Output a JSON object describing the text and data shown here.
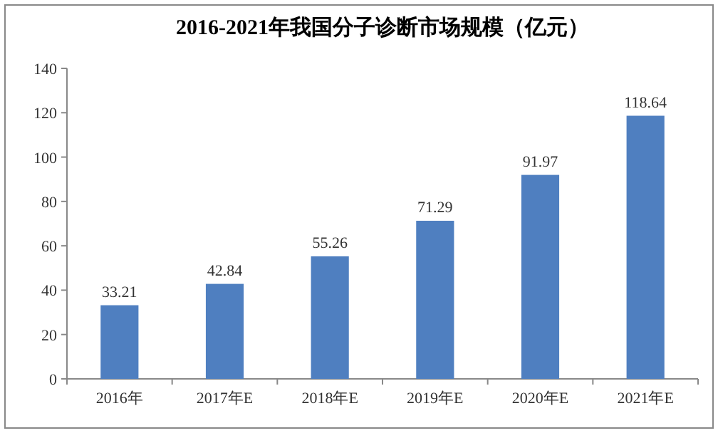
{
  "chart_data": {
    "type": "bar",
    "title": "2016-2021年我国分子诊断市场规模（亿元）",
    "categories": [
      "2016年",
      "2017年E",
      "2018年E",
      "2019年E",
      "2020年E",
      "2021年E"
    ],
    "values": [
      33.21,
      42.84,
      55.26,
      71.29,
      91.97,
      118.64
    ],
    "color": "#4f7fc0",
    "ylim": [
      0,
      140
    ],
    "yticks": [
      0,
      20,
      40,
      60,
      80,
      100,
      120,
      140
    ],
    "data_labels": true
  }
}
